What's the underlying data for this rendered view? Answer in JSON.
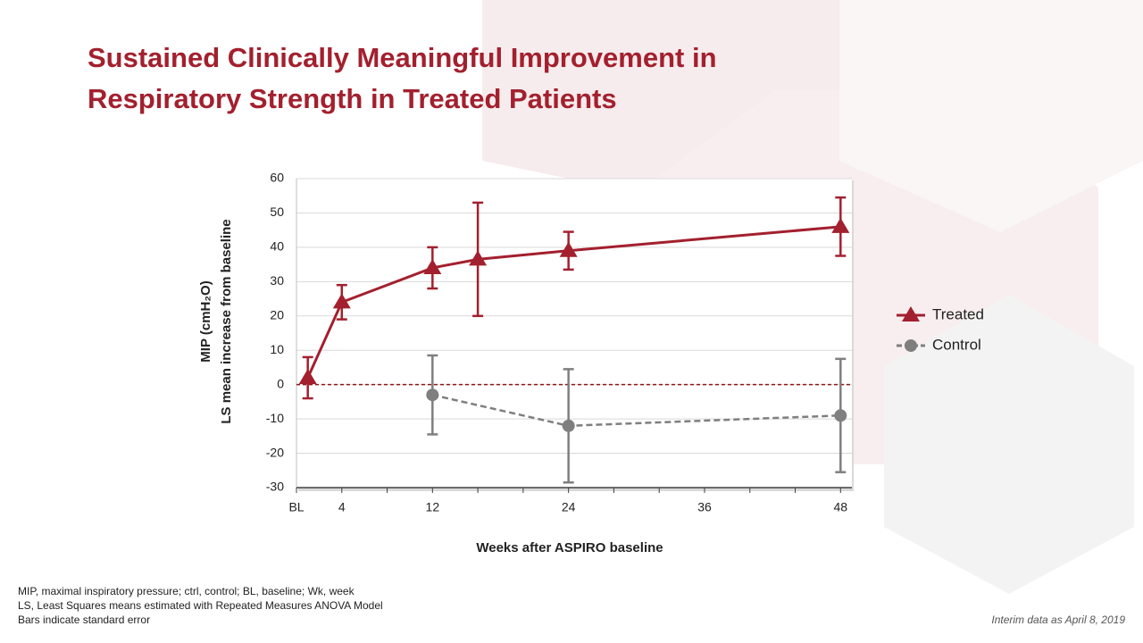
{
  "header": {
    "title_lines": [
      "Sustained Clinically Meaningful Improvement in",
      "Respiratory Strength in Treated Patients"
    ]
  },
  "chart_data": {
    "type": "line",
    "x_label": "Weeks after ASPIRO baseline",
    "y_label_lines": [
      "MIP (cmH₂O)",
      "LS mean increase from baseline"
    ],
    "xlim": [
      0,
      49
    ],
    "xticks": [
      {
        "value": 0,
        "label": "BL"
      },
      4,
      12,
      24,
      36,
      48
    ],
    "x_minor_ticks": [
      8,
      16,
      20,
      28,
      32,
      40,
      44
    ],
    "ylim": [
      -30,
      60
    ],
    "yticks": [
      -30,
      -20,
      -10,
      0,
      10,
      20,
      30,
      40,
      50,
      60
    ],
    "grid": true,
    "reference_line": 0,
    "legend": "right",
    "series": [
      {
        "name": "Treated",
        "color": "#a3202e",
        "marker": "triangle",
        "dashed": false,
        "x": [
          1,
          4,
          12,
          16,
          24,
          48
        ],
        "values": [
          2,
          24,
          34,
          36.5,
          39,
          46
        ],
        "errors": [
          6,
          5,
          6,
          16.5,
          5.5,
          8.5
        ]
      },
      {
        "name": "Control",
        "color": "#7f7f7f",
        "marker": "circle",
        "dashed": true,
        "x": [
          12,
          24,
          48
        ],
        "values": [
          -3,
          -12,
          -9
        ],
        "errors": [
          11.5,
          16.5,
          16.5
        ]
      }
    ]
  },
  "footnotes": [
    "MIP, maximal inspiratory pressure; ctrl, control; BL, baseline; Wk, week",
    "LS, Least Squares means estimated with Repeated Measures ANOVA Model",
    "Bars indicate standard error"
  ],
  "interim_note": "Interim data as April 8, 2019"
}
